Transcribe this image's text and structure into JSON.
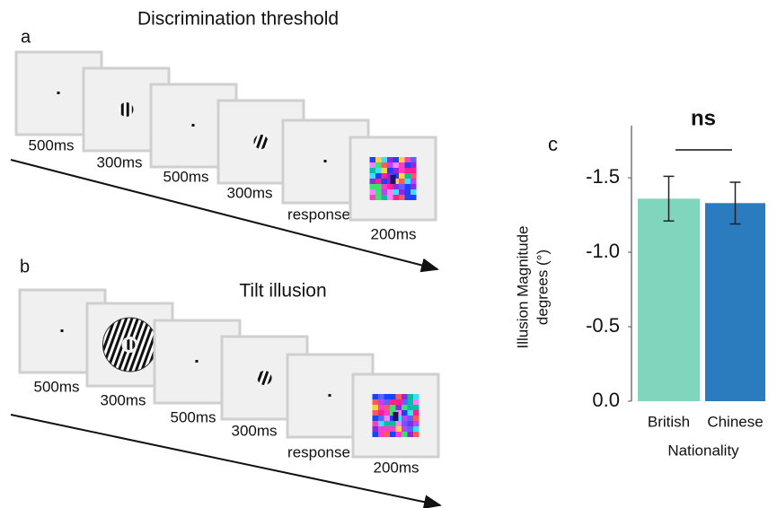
{
  "panel_a": {
    "label": "a",
    "title": "Discrimination threshold",
    "frames": [
      "500ms",
      "300ms",
      "500ms",
      "300ms",
      "response",
      "200ms"
    ]
  },
  "panel_b": {
    "label": "b",
    "title": "Tilt illusion",
    "frames": [
      "500ms",
      "300ms",
      "500ms",
      "300ms",
      "response",
      "200ms"
    ]
  },
  "chart_data": {
    "type": "bar",
    "panel_label": "c",
    "annotation": "ns",
    "y_label": [
      "Illusion Magnitude",
      "degrees (°)"
    ],
    "x_label": "Nationality",
    "categories": [
      "British",
      "Chinese"
    ],
    "values": [
      -1.36,
      -1.33
    ],
    "errors": [
      0.15,
      0.14
    ],
    "colors": [
      "#7fd6bd",
      "#2b7bbf"
    ],
    "ylim": [
      0,
      -1.85
    ],
    "yticks": [
      {
        "value": 0,
        "label": "0.0"
      },
      {
        "value": -0.5,
        "label": "-0.5"
      },
      {
        "value": -1,
        "label": "-1.0"
      },
      {
        "value": -1.5,
        "label": "-1.5"
      }
    ]
  }
}
